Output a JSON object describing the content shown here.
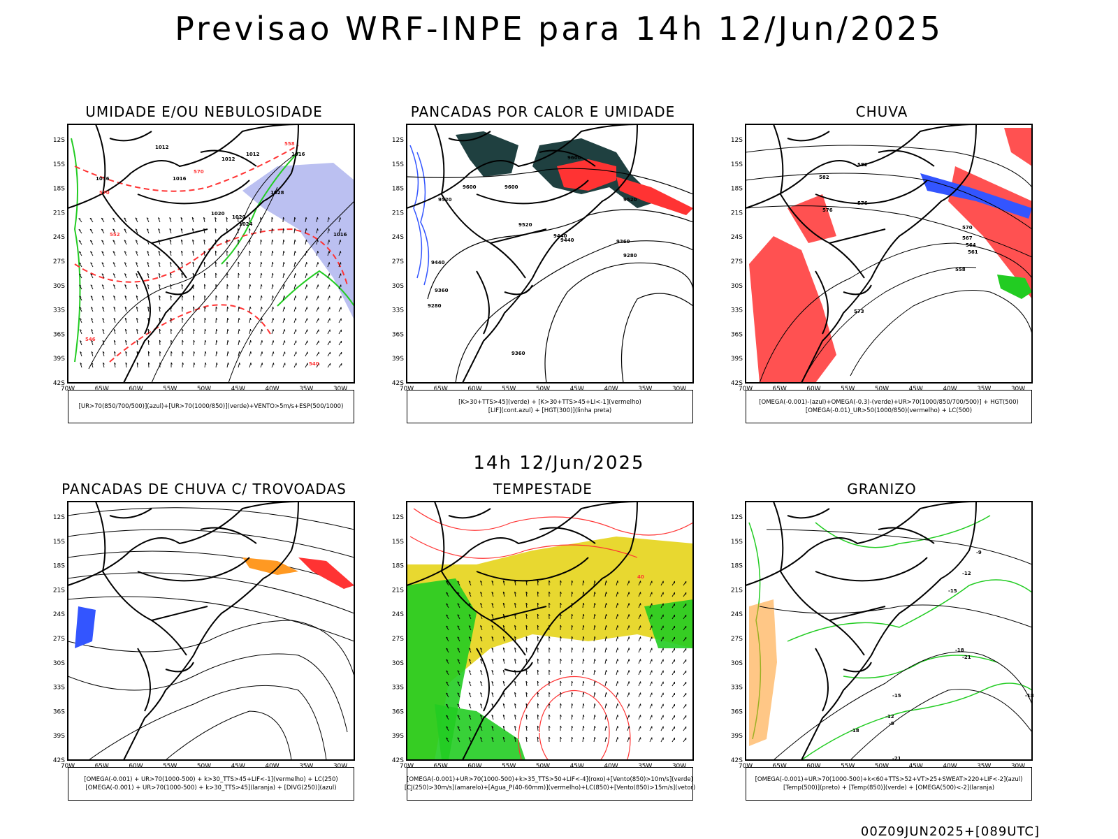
{
  "title": "Previsao WRF-INPE  para 14h 12/Jun/2025",
  "mid_title": "14h 12/Jun/2025",
  "footer": "00Z09JUN2025+[089UTC]",
  "axes": {
    "lat_labels": [
      "12S",
      "15S",
      "18S",
      "21S",
      "24S",
      "27S",
      "30S",
      "33S",
      "36S",
      "39S",
      "42S"
    ],
    "lon_labels": [
      "70W",
      "65W",
      "60W",
      "55W",
      "50W",
      "45W",
      "40W",
      "35W",
      "30W"
    ]
  },
  "colors": {
    "blue": "#3355ff",
    "green": "#22cc22",
    "red": "#ff3333",
    "dark_teal": "#1f4040",
    "lavender": "#aab0ee",
    "yellow": "#e8d830",
    "orange": "#ff9922"
  },
  "panels": [
    {
      "title": "UMIDADE E/OU NEBULOSIDADE",
      "legend": [
        "[UR>70(850/700/500)](azul)+[UR>70(1000/850)](verde)+VENTO>5m/s+ESP(500/1000)"
      ],
      "labels": [
        "1012",
        "1012",
        "1012",
        "1016",
        "1016",
        "1016",
        "1020",
        "1020",
        "1024",
        "1028",
        "1016",
        "570",
        "570",
        "552",
        "558",
        "546",
        "540"
      ]
    },
    {
      "title": "PANCADAS POR CALOR E UMIDADE",
      "legend": [
        "[K>30+TTS>45](verde) + [K>30+TTS>45+LI<-1](vermelho)",
        "[LIF](cont.azul) + [HGT(300)](linha preta)"
      ],
      "labels": [
        "9600",
        "9600",
        "9600",
        "9520",
        "9520",
        "9440",
        "9360",
        "9280",
        "9440",
        "9360",
        "9280",
        "9360",
        "9440",
        "9520"
      ]
    },
    {
      "title": "CHUVA",
      "legend": [
        "[OMEGA(-0.001)-(azul)+OMEGA(-0.3)-(verde)+UR>70(1000/850/700/500)] + HGT(500)",
        "[OMEGA(-0.01)_UR>50(1000/850)(vermelho) + LC(500)"
      ],
      "labels": [
        "582",
        "582",
        "576",
        "576",
        "573",
        "570",
        "567",
        "564",
        "561",
        "558"
      ]
    },
    {
      "title": "PANCADAS DE CHUVA C/ TROVOADAS",
      "legend": [
        "[OMEGA(-0.001) + UR>70(1000-500) + k>30_TTS>45+LIF<-1](vermelho) + LC(250)",
        "[OMEGA(-0.001) + UR>70(1000-500) + k>30_TTS>45](laranja) + [DIVG(250)](azul)"
      ],
      "labels": []
    },
    {
      "title": "TEMPESTADE",
      "legend": [
        "[OMEGA(-0.001)+UR>70(1000-500)+k>35_TTS>50+LIF<-4](roxo)+[Vento(850)>10m/s](verde)",
        "[CJ(250)>30m/s](amarelo)+[Agua_P(40-60mm)](vermelho)+LC(850)+[Vento(850)>15m/s](vetor)"
      ],
      "labels": [
        "40"
      ]
    },
    {
      "title": "GRANIZO",
      "legend": [
        "[OMEGA(-0.001)+UR>70(1000-500)+k<60+TTS>52+VT>25+SWEAT>220+LIF<-2](azul)",
        "[Temp(500)](preto) + [Temp(850)](verde) + [OMEGA(500)<-2](laranja)"
      ],
      "labels": [
        "-9",
        "-12",
        "-15",
        "-18",
        "-21",
        "-18",
        "-15",
        "-12",
        "-9",
        "-18",
        "-21"
      ]
    }
  ]
}
